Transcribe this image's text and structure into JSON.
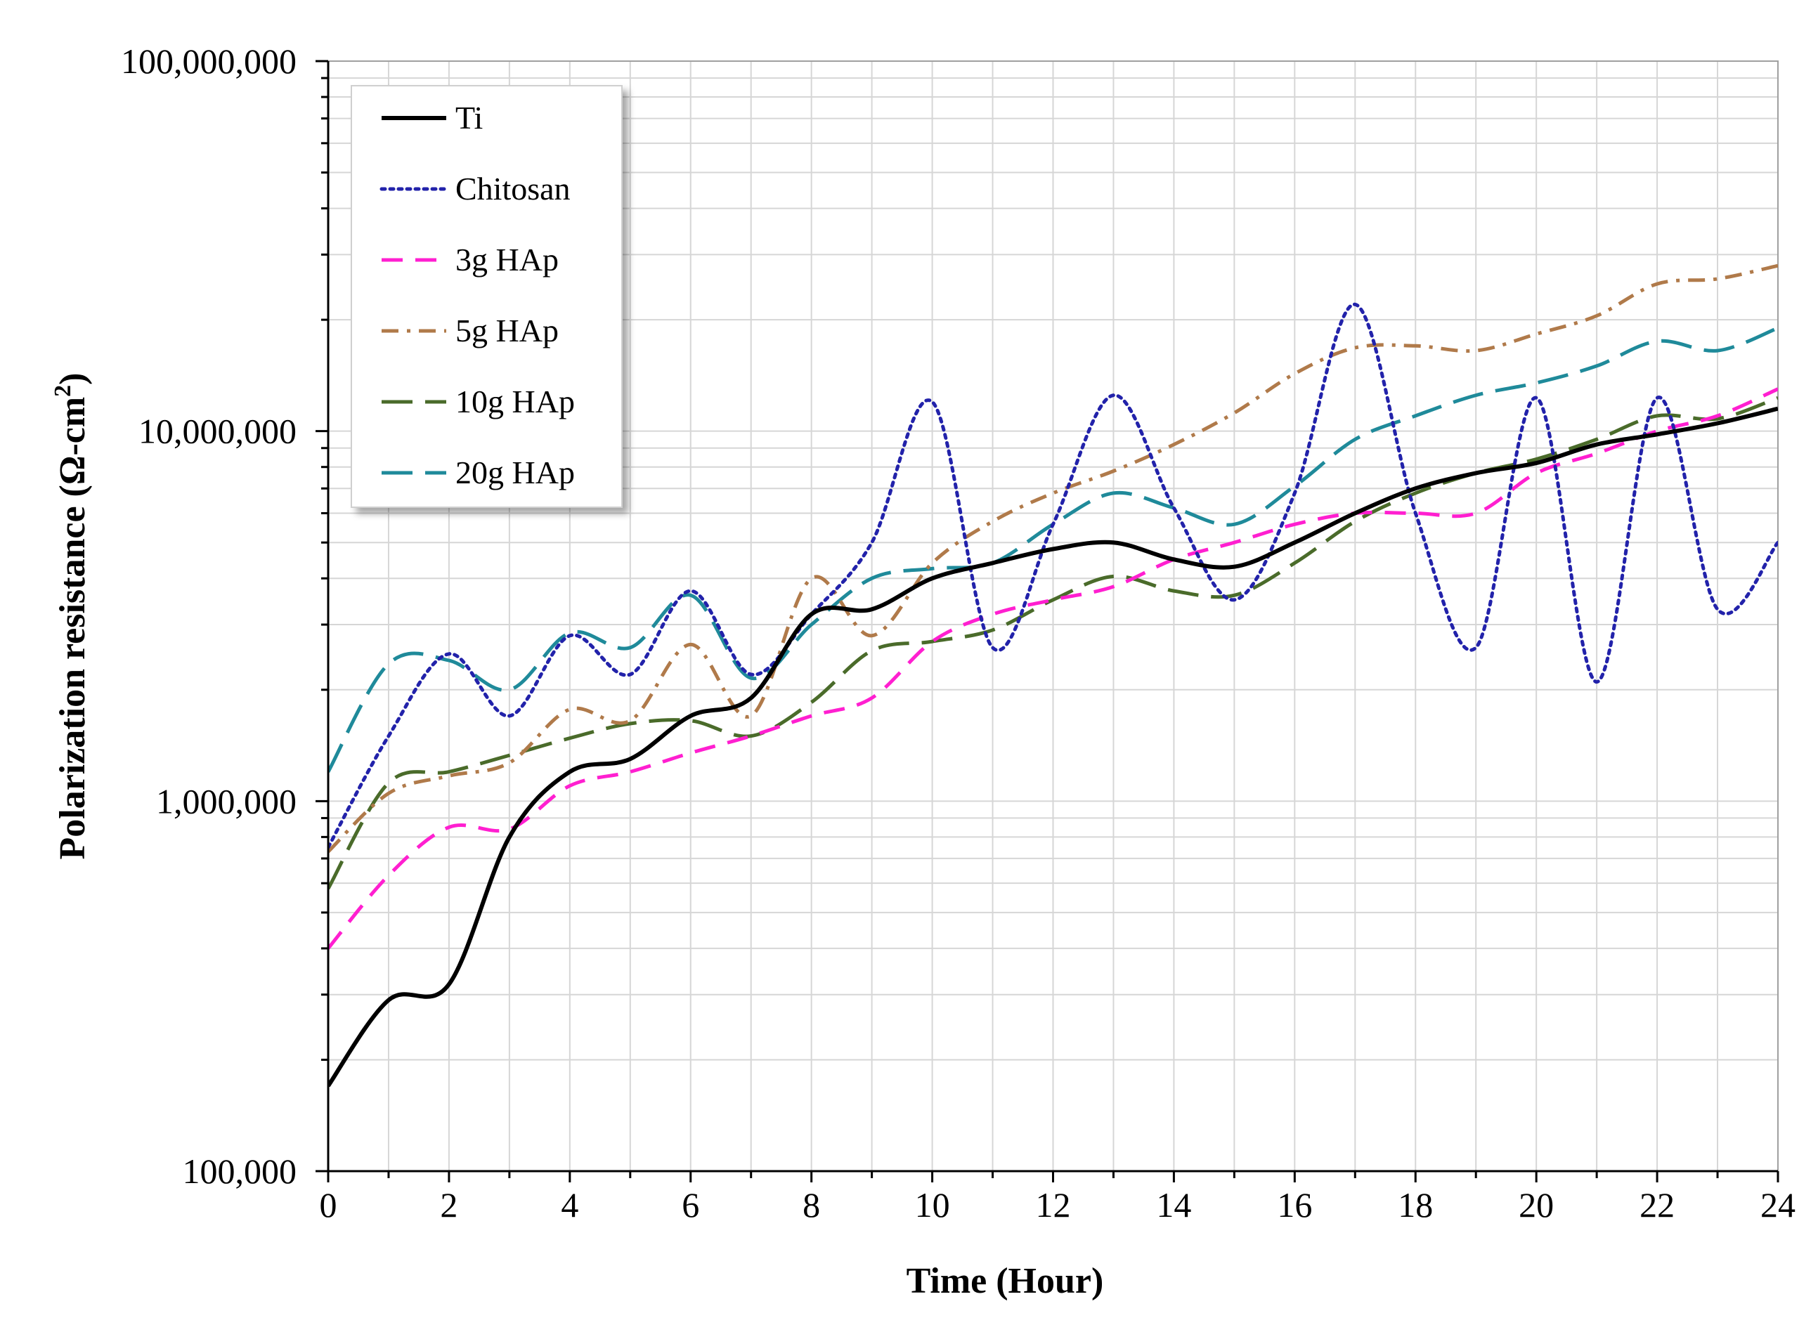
{
  "chart_data": {
    "type": "line",
    "title": "",
    "xlabel": "Time (Hour)",
    "ylabel_main": "Polarization resistance (Ω-cm",
    "ylabel_sup": "2",
    "ylabel_tail": ")",
    "xlim": [
      0,
      24
    ],
    "ylim": [
      100000,
      100000000
    ],
    "yscale": "log",
    "grid": true,
    "legend_position": "top-left",
    "x_ticks": [
      0,
      2,
      4,
      6,
      8,
      10,
      12,
      14,
      16,
      18,
      20,
      22,
      24
    ],
    "x_tick_labels": [
      "0",
      "2",
      "4",
      "6",
      "8",
      "10",
      "12",
      "14",
      "16",
      "18",
      "20",
      "22",
      "24"
    ],
    "y_ticks": [
      100000,
      1000000,
      10000000,
      100000000
    ],
    "y_tick_labels": [
      "100,000",
      "1,000,000",
      "10,000,000",
      "100,000,000"
    ],
    "x": [
      0,
      1,
      2,
      3,
      4,
      5,
      6,
      7,
      8,
      9,
      10,
      11,
      12,
      13,
      14,
      15,
      16,
      17,
      18,
      19,
      20,
      21,
      22,
      23,
      24
    ],
    "series": [
      {
        "name": "Ti",
        "color": "#000000",
        "dash": "solid",
        "values": [
          170000,
          290000,
          320000,
          800000,
          1200000,
          1300000,
          1700000,
          1900000,
          3200000,
          3300000,
          4000000,
          4400000,
          4800000,
          5000000,
          4500000,
          4300000,
          5000000,
          6000000,
          7000000,
          7700000,
          8200000,
          9200000,
          9800000,
          10500000,
          11500000
        ]
      },
      {
        "name": "Chitosan",
        "color": "#2222aa",
        "dash": "dotted",
        "values": [
          750000,
          1500000,
          2500000,
          1700000,
          2800000,
          2200000,
          3700000,
          2200000,
          3200000,
          5000000,
          12000000,
          2600000,
          5600000,
          12500000,
          6200000,
          3500000,
          6800000,
          22000000,
          6000000,
          2600000,
          12300000,
          2100000,
          12300000,
          3300000,
          5000000
        ]
      },
      {
        "name": "3g HAp",
        "color": "#ff1fd0",
        "dash": "dashed",
        "values": [
          400000,
          630000,
          850000,
          840000,
          1100000,
          1200000,
          1350000,
          1500000,
          1700000,
          1900000,
          2700000,
          3200000,
          3500000,
          3800000,
          4500000,
          5000000,
          5600000,
          6000000,
          6000000,
          6000000,
          7700000,
          8700000,
          10000000,
          11000000,
          13000000
        ]
      },
      {
        "name": "5g HAp",
        "color": "#b07a4a",
        "dash": "dashdot",
        "values": [
          730000,
          1050000,
          1170000,
          1270000,
          1770000,
          1650000,
          2650000,
          1700000,
          4000000,
          2800000,
          4400000,
          5700000,
          6800000,
          7800000,
          9200000,
          11200000,
          14300000,
          16800000,
          17000000,
          16500000,
          18300000,
          20500000,
          25000000,
          25800000,
          28000000
        ]
      },
      {
        "name": "10g HAp",
        "color": "#4a6b2a",
        "dash": "longdash",
        "values": [
          580000,
          1120000,
          1200000,
          1330000,
          1480000,
          1620000,
          1650000,
          1500000,
          1850000,
          2550000,
          2700000,
          2900000,
          3500000,
          4050000,
          3700000,
          3600000,
          4400000,
          5700000,
          6800000,
          7700000,
          8400000,
          9500000,
          11000000,
          10800000,
          12300000
        ]
      },
      {
        "name": "20g HAp",
        "color": "#1f8a9a",
        "dash": "longdash",
        "values": [
          1200000,
          2350000,
          2400000,
          2000000,
          2850000,
          2600000,
          3600000,
          2150000,
          3000000,
          4000000,
          4250000,
          4400000,
          5600000,
          6800000,
          6200000,
          5600000,
          7100000,
          9500000,
          11000000,
          12500000,
          13500000,
          15000000,
          17500000,
          16500000,
          19000000
        ]
      }
    ]
  }
}
